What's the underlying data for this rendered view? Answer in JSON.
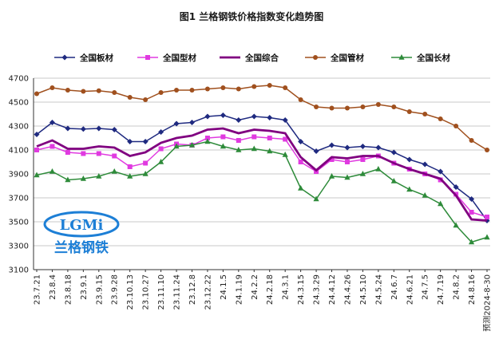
{
  "chart_data": {
    "type": "line",
    "title": "图1 兰格钢铁价格指数变化趋势图",
    "ylim": [
      3100,
      4700
    ],
    "yticks": [
      3100,
      3300,
      3500,
      3700,
      3900,
      4100,
      4300,
      4500,
      4700
    ],
    "grid": true,
    "legend_position": "top",
    "categories": [
      "23.7.21",
      "23.8.4",
      "23.8.18",
      "23.9.1",
      "23.9.15",
      "23.9.28",
      "23.10.13",
      "23.10.27",
      "23.11.10",
      "23.11.24",
      "23.12.8",
      "23.12.22",
      "24.1.5",
      "24.1.19",
      "24.2.2",
      "24.2.18",
      "24.3.1",
      "24.3.15",
      "24.3.29",
      "24.4.12",
      "24.4.26",
      "24.5.10",
      "24.5.24",
      "24.6.7",
      "24.6.21",
      "24.7.5",
      "24.7.19",
      "24.8.2",
      "24.8.16",
      "预测2024-8-30"
    ],
    "series": [
      {
        "name": "全国板材",
        "color": "#1f2a80",
        "marker": "diamond",
        "values": [
          4230,
          4330,
          4280,
          4275,
          4280,
          4270,
          4170,
          4170,
          4250,
          4320,
          4330,
          4380,
          4390,
          4350,
          4380,
          4370,
          4350,
          4170,
          4090,
          4140,
          4120,
          4130,
          4120,
          4080,
          4020,
          3980,
          3920,
          3790,
          3690,
          3510
        ]
      },
      {
        "name": "全国型材",
        "color": "#e03ae0",
        "marker": "square",
        "values": [
          4100,
          4130,
          4080,
          4070,
          4070,
          4050,
          3960,
          3990,
          4110,
          4150,
          4140,
          4200,
          4210,
          4180,
          4210,
          4200,
          4190,
          4000,
          3920,
          4020,
          4000,
          4020,
          4050,
          3990,
          3940,
          3900,
          3850,
          3730,
          3580,
          3540
        ]
      },
      {
        "name": "全国综合",
        "color": "#800080",
        "marker": "none",
        "values": [
          4130,
          4180,
          4110,
          4110,
          4130,
          4120,
          4050,
          4080,
          4160,
          4200,
          4220,
          4270,
          4280,
          4240,
          4270,
          4260,
          4240,
          4040,
          3930,
          4040,
          4030,
          4050,
          4050,
          3990,
          3940,
          3900,
          3860,
          3720,
          3520,
          3510
        ]
      },
      {
        "name": "全国管材",
        "color": "#a0501e",
        "marker": "circle",
        "values": [
          4570,
          4620,
          4600,
          4590,
          4595,
          4580,
          4540,
          4520,
          4580,
          4600,
          4600,
          4610,
          4620,
          4610,
          4630,
          4640,
          4620,
          4520,
          4460,
          4450,
          4450,
          4460,
          4480,
          4460,
          4420,
          4400,
          4360,
          4300,
          4180,
          4100
        ]
      },
      {
        "name": "全国长材",
        "color": "#2e8b3a",
        "marker": "triangle",
        "values": [
          3890,
          3920,
          3850,
          3860,
          3880,
          3920,
          3880,
          3900,
          4000,
          4130,
          4140,
          4170,
          4130,
          4100,
          4110,
          4090,
          4060,
          3780,
          3690,
          3880,
          3870,
          3900,
          3940,
          3840,
          3770,
          3720,
          3650,
          3470,
          3330,
          3370
        ]
      }
    ]
  },
  "logo": {
    "badge": "LGMi",
    "name": "兰格钢铁",
    "brand_color": "#1d7fd6"
  }
}
